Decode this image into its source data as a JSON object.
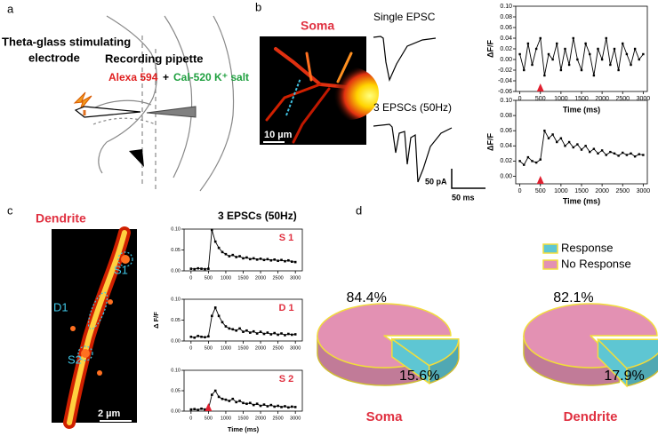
{
  "panel_labels": [
    "a",
    "b",
    "c",
    "d"
  ],
  "panel_a": {
    "stim_label_1": "Theta-glass stimulating",
    "stim_label_2": "electrode",
    "recording_label": "Recording pipette",
    "dye1": "Alexa 594",
    "plus": "+",
    "dye2": "Cal-520 K⁺ salt"
  },
  "panel_b": {
    "title": "Soma",
    "scale_bar": "10 µm",
    "trace1": "Single EPSC",
    "trace2": "3 EPSCs (50Hz)",
    "scale_pa": "50 pA",
    "scale_ms": "50 ms"
  },
  "panel_c": {
    "title": "Dendrite",
    "scale_bar": "2 µm",
    "regions": [
      "S1",
      "D1",
      "S2"
    ],
    "trace_title": "3 EPSCs (50Hz)"
  },
  "chart_data": [
    {
      "type": "line",
      "color": "#000000",
      "ylabel": "ΔF/F",
      "xlabel": "Time (ms)",
      "stimulus_x": 500,
      "x": [
        0,
        100,
        200,
        300,
        400,
        500,
        600,
        700,
        800,
        900,
        1000,
        1100,
        1200,
        1300,
        1400,
        1500,
        1600,
        1700,
        1800,
        1900,
        2000,
        2100,
        2200,
        2300,
        2400,
        2500,
        2600,
        2700,
        2800,
        2900,
        3000
      ],
      "values": [
        0.01,
        -0.02,
        0.03,
        -0.01,
        0.02,
        0.04,
        -0.03,
        0.01,
        0.0,
        0.03,
        -0.02,
        0.02,
        -0.01,
        0.04,
        0.0,
        -0.02,
        0.03,
        0.01,
        -0.03,
        0.02,
        0.0,
        0.04,
        -0.01,
        0.02,
        -0.02,
        0.03,
        0.01,
        -0.01,
        0.02,
        0.0,
        0.01
      ],
      "xlim": [
        -100,
        3100
      ],
      "xticks": [
        0,
        500,
        1000,
        1500,
        2000,
        2500,
        3000
      ],
      "ylim": [
        -0.06,
        0.1
      ],
      "yticks": [
        -0.06,
        -0.04,
        -0.02,
        {
          "value": 0,
          "label": "0.00"
        },
        0.02,
        0.04,
        0.06,
        0.08,
        {
          "value": 0.1,
          "label": "0.10"
        }
      ]
    },
    {
      "type": "line",
      "color": "#000000",
      "ylabel": "ΔF/F",
      "xlabel": "Time (ms)",
      "stimulus_x": 500,
      "x": [
        0,
        100,
        200,
        300,
        400,
        500,
        600,
        700,
        800,
        900,
        1000,
        1100,
        1200,
        1300,
        1400,
        1500,
        1600,
        1700,
        1800,
        1900,
        2000,
        2100,
        2200,
        2300,
        2400,
        2500,
        2600,
        2700,
        2800,
        2900,
        3000
      ],
      "values": [
        0.02,
        0.015,
        0.025,
        0.02,
        0.018,
        0.022,
        0.06,
        0.05,
        0.055,
        0.045,
        0.05,
        0.04,
        0.045,
        0.038,
        0.042,
        0.035,
        0.04,
        0.032,
        0.036,
        0.03,
        0.034,
        0.028,
        0.032,
        0.03,
        0.027,
        0.031,
        0.028,
        0.03,
        0.026,
        0.029,
        0.028
      ],
      "xlim": [
        -100,
        3100
      ],
      "xticks": [
        0,
        500,
        1000,
        1500,
        2000,
        2500,
        3000
      ],
      "ylim": [
        -0.01,
        0.1
      ],
      "yticks": [
        {
          "value": 0,
          "label": "0.00"
        },
        0.02,
        0.04,
        0.06,
        0.08,
        {
          "value": 0.1,
          "label": "0.10"
        }
      ]
    },
    {
      "type": "line",
      "color": "#000000",
      "label": "S 1",
      "x": [
        0,
        100,
        200,
        300,
        400,
        500,
        600,
        700,
        800,
        900,
        1000,
        1100,
        1200,
        1300,
        1400,
        1500,
        1600,
        1700,
        1800,
        1900,
        2000,
        2100,
        2200,
        2300,
        2400,
        2500,
        2600,
        2700,
        2800,
        2900,
        3000
      ],
      "values": [
        0.005,
        0.004,
        0.006,
        0.005,
        0.004,
        0.005,
        0.098,
        0.07,
        0.055,
        0.045,
        0.04,
        0.035,
        0.038,
        0.033,
        0.035,
        0.03,
        0.032,
        0.028,
        0.03,
        0.027,
        0.029,
        0.026,
        0.028,
        0.025,
        0.027,
        0.024,
        0.026,
        0.023,
        0.025,
        0.022,
        0.021
      ],
      "xlim": [
        -200,
        3200
      ],
      "xticks": [
        0,
        500,
        1000,
        1500,
        2000,
        2500,
        3000
      ],
      "ylim": [
        0,
        0.1
      ],
      "yticks": [
        {
          "value": 0,
          "label": "0.00"
        },
        0.05,
        {
          "value": 0.1,
          "label": "0.10"
        }
      ]
    },
    {
      "type": "line",
      "color": "#000000",
      "label": "D 1",
      "ylabel": "Δ F/F",
      "x": [
        0,
        100,
        200,
        300,
        400,
        500,
        600,
        700,
        800,
        900,
        1000,
        1100,
        1200,
        1300,
        1400,
        1500,
        1600,
        1700,
        1800,
        1900,
        2000,
        2100,
        2200,
        2300,
        2400,
        2500,
        2600,
        2700,
        2800,
        2900,
        3000
      ],
      "values": [
        0.01,
        0.008,
        0.012,
        0.01,
        0.009,
        0.011,
        0.06,
        0.08,
        0.06,
        0.045,
        0.035,
        0.03,
        0.028,
        0.025,
        0.03,
        0.022,
        0.025,
        0.02,
        0.023,
        0.018,
        0.022,
        0.017,
        0.02,
        0.016,
        0.019,
        0.015,
        0.018,
        0.014,
        0.017,
        0.015,
        0.016
      ],
      "xlim": [
        -200,
        3200
      ],
      "xticks": [
        0,
        500,
        1000,
        1500,
        2000,
        2500,
        3000
      ],
      "ylim": [
        0,
        0.1
      ],
      "yticks": [
        {
          "value": 0,
          "label": "0.00"
        },
        0.05,
        {
          "value": 0.1,
          "label": "0.10"
        }
      ]
    },
    {
      "type": "line",
      "color": "#000000",
      "label": "S 2",
      "xlabel": "Time (ms)",
      "stimulus_x": 500,
      "x": [
        0,
        100,
        200,
        300,
        400,
        500,
        600,
        700,
        800,
        900,
        1000,
        1100,
        1200,
        1300,
        1400,
        1500,
        1600,
        1700,
        1800,
        1900,
        2000,
        2100,
        2200,
        2300,
        2400,
        2500,
        2600,
        2700,
        2800,
        2900,
        3000
      ],
      "values": [
        0.004,
        0.005,
        0.003,
        0.006,
        0.004,
        0.005,
        0.04,
        0.05,
        0.035,
        0.03,
        0.028,
        0.025,
        0.03,
        0.022,
        0.025,
        0.02,
        0.018,
        0.02,
        0.015,
        0.018,
        0.013,
        0.016,
        0.012,
        0.015,
        0.011,
        0.013,
        0.01,
        0.012,
        0.009,
        0.011,
        0.01
      ],
      "xlim": [
        -200,
        3200
      ],
      "xticks": [
        0,
        500,
        1000,
        1500,
        2000,
        2500,
        3000
      ],
      "ylim": [
        0,
        0.1
      ],
      "yticks": [
        {
          "value": 0,
          "label": "0.00"
        },
        0.05,
        {
          "value": 0.1,
          "label": "0.10"
        }
      ]
    },
    {
      "type": "pie",
      "title": "Soma",
      "categories": [
        "Response",
        "No Response"
      ],
      "values": [
        15.6,
        84.4
      ],
      "value_labels": [
        "15.6%",
        "84.4%"
      ],
      "colors": [
        "#5ec6d3",
        "#e391b3"
      ],
      "legend": false
    },
    {
      "type": "pie",
      "title": "Dendrite",
      "categories": [
        "Response",
        "No Response"
      ],
      "values": [
        17.9,
        82.1
      ],
      "value_labels": [
        "17.9%",
        "82.1%"
      ],
      "colors": [
        "#5ec6d3",
        "#e391b3"
      ],
      "legend": true
    }
  ]
}
